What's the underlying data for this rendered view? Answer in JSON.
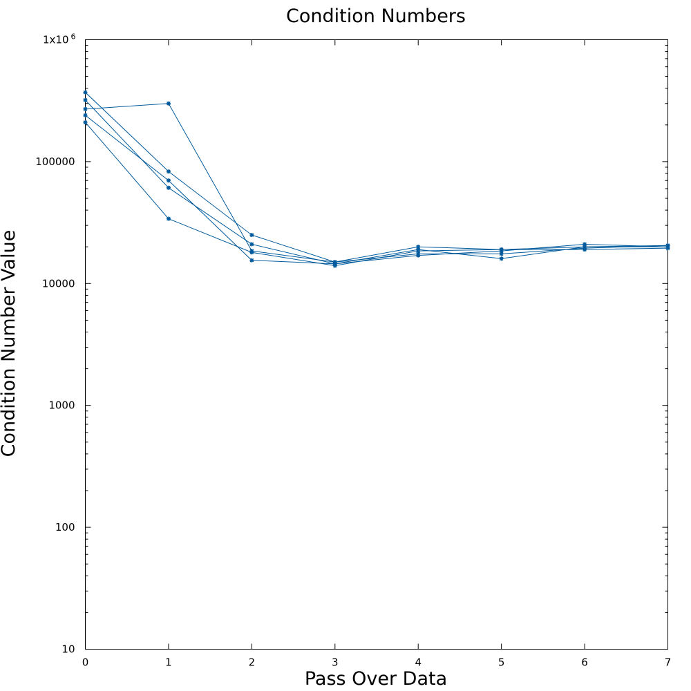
{
  "chart_data": {
    "type": "line",
    "title": "Condition Numbers",
    "xlabel": "Pass Over Data",
    "ylabel": "Condition Number Value",
    "xlim": [
      0,
      7
    ],
    "ylim": [
      10,
      1000000
    ],
    "yscale": "log",
    "grid": false,
    "x": [
      0,
      1,
      2,
      3,
      4,
      5,
      6,
      7
    ],
    "x_tick_labels": [
      "0",
      "1",
      "2",
      "3",
      "4",
      "5",
      "6",
      "7"
    ],
    "y_ticks": [
      10,
      100,
      1000,
      10000,
      100000,
      1000000
    ],
    "y_tick_labels": [
      "10",
      "100",
      "1000",
      "10000",
      "100000",
      "1x10"
    ],
    "y_top_tick_exponent": "6",
    "line_color": "#005a9c",
    "series": [
      {
        "values": [
          370000,
          83000,
          25000,
          15000,
          20000,
          19000,
          20000,
          20500
        ]
      },
      {
        "values": [
          270000,
          300000,
          18500,
          15000,
          17500,
          17500,
          19500,
          20500
        ]
      },
      {
        "values": [
          320000,
          61000,
          21000,
          14500,
          19000,
          16000,
          20000,
          20000
        ]
      },
      {
        "values": [
          240000,
          70000,
          15500,
          14500,
          17000,
          18500,
          21000,
          20000
        ]
      },
      {
        "values": [
          210000,
          34000,
          18000,
          14000,
          18500,
          19000,
          19000,
          19500
        ]
      }
    ]
  }
}
